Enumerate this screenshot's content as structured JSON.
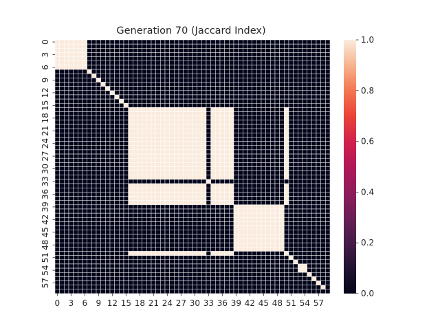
{
  "chart_data": {
    "type": "heatmap",
    "title": "Generation 70 (Jaccard Index)",
    "xlabel": "",
    "ylabel": "",
    "size": 60,
    "x_tick_labels": [
      "0",
      "3",
      "6",
      "9",
      "12",
      "15",
      "18",
      "21",
      "24",
      "27",
      "30",
      "33",
      "36",
      "39",
      "42",
      "45",
      "48",
      "51",
      "54",
      "57"
    ],
    "y_tick_labels": [
      "0",
      "3",
      "6",
      "9",
      "12",
      "15",
      "18",
      "21",
      "24",
      "27",
      "30",
      "33",
      "36",
      "39",
      "42",
      "45",
      "48",
      "51",
      "54",
      "57"
    ],
    "value_range": [
      0.0,
      1.0
    ],
    "colorbar": {
      "ticks": [
        "0.0",
        "0.2",
        "0.4",
        "0.6",
        "0.8",
        "1.0"
      ],
      "colormap": "rocket",
      "low_color": "#03051a",
      "high_color": "#faebdd"
    },
    "grid_line_color": "#ffffff",
    "blocks": [
      {
        "members": [
          0,
          1,
          2,
          3,
          4,
          5,
          6
        ],
        "value": 1.0
      },
      {
        "members": [
          7
        ],
        "value": 1.0
      },
      {
        "members": [
          8
        ],
        "value": 1.0
      },
      {
        "members": [
          9
        ],
        "value": 1.0
      },
      {
        "members": [
          10
        ],
        "value": 1.0
      },
      {
        "members": [
          11
        ],
        "value": 1.0
      },
      {
        "members": [
          12
        ],
        "value": 1.0
      },
      {
        "members": [
          13
        ],
        "value": 1.0
      },
      {
        "members": [
          14
        ],
        "value": 1.0
      },
      {
        "members": [
          15
        ],
        "value": 1.0
      },
      {
        "members": [
          16,
          17,
          18,
          19,
          20,
          21,
          22,
          23,
          24,
          25,
          26,
          27,
          28,
          29,
          30,
          31,
          32,
          34,
          35,
          36,
          37,
          38,
          50
        ],
        "value": 1.0
      },
      {
        "members": [
          33
        ],
        "value": 1.0
      },
      {
        "members": [
          39,
          40,
          41,
          42,
          43,
          44,
          45,
          46,
          47,
          48,
          49
        ],
        "value": 1.0
      },
      {
        "members": [
          51
        ],
        "value": 1.0
      },
      {
        "members": [
          52
        ],
        "value": 1.0
      },
      {
        "members": [
          53,
          54
        ],
        "value": 1.0
      },
      {
        "members": [
          55
        ],
        "value": 1.0
      },
      {
        "members": [
          56
        ],
        "value": 1.0
      },
      {
        "members": [
          57
        ],
        "value": 1.0
      },
      {
        "members": [
          58
        ],
        "value": 1.0
      }
    ],
    "off_block_value": 0.0
  }
}
